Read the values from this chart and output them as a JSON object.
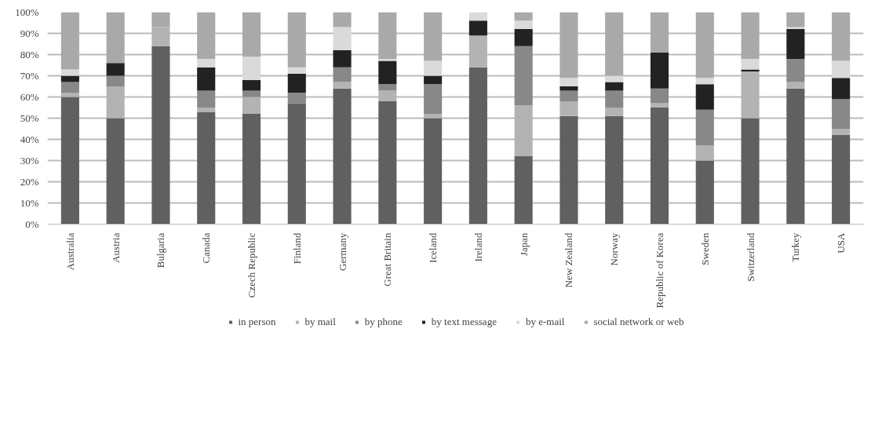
{
  "chart_data": {
    "type": "bar",
    "stacked": true,
    "categories": [
      "Australia",
      "Austria",
      "Bulgaria",
      "Canada",
      "Czech Republic",
      "Finland",
      "Germany",
      "Great Britain",
      "Iceland",
      "Ireland",
      "Japan",
      "New Zealand",
      "Norway",
      "Republic of Korea",
      "Sweden",
      "Switzerland",
      "Turkey",
      "USA"
    ],
    "series": [
      {
        "name": "in person",
        "color": "#606060",
        "values": [
          60,
          50,
          84,
          53,
          52,
          57,
          64,
          58,
          50,
          74,
          32,
          51,
          51,
          55,
          30,
          50,
          64,
          42
        ]
      },
      {
        "name": "by mail",
        "color": "#b3b3b3",
        "values": [
          2,
          15,
          9,
          2,
          8,
          0,
          3,
          5,
          2,
          15,
          24,
          7,
          4,
          2,
          7,
          22,
          3,
          3
        ]
      },
      {
        "name": "by phone",
        "color": "#888888",
        "values": [
          5,
          5,
          0,
          8,
          3,
          5,
          7,
          3,
          14,
          0,
          28,
          5,
          8,
          7,
          17,
          0,
          11,
          14
        ]
      },
      {
        "name": "by text message",
        "color": "#222222",
        "values": [
          3,
          6,
          0,
          11,
          5,
          9,
          8,
          11,
          4,
          7,
          8,
          2,
          4,
          17,
          12,
          1,
          14,
          10
        ]
      },
      {
        "name": "by e-mail",
        "color": "#dadada",
        "values": [
          3,
          0,
          0,
          4,
          11,
          3,
          11,
          1,
          7,
          4,
          4,
          4,
          3,
          0,
          3,
          5,
          1,
          8
        ]
      },
      {
        "name": "social network or web",
        "color": "#a9a9a9",
        "values": [
          27,
          24,
          7,
          22,
          21,
          26,
          7,
          22,
          23,
          0,
          4,
          31,
          30,
          19,
          31,
          22,
          7,
          23
        ]
      }
    ],
    "ylim": [
      0,
      100
    ],
    "yticks": [
      {
        "value": 0,
        "label": "0%"
      },
      {
        "value": 10,
        "label": "10%"
      },
      {
        "value": 20,
        "label": "20%"
      },
      {
        "value": 30,
        "label": "30%"
      },
      {
        "value": 40,
        "label": "40%"
      },
      {
        "value": 50,
        "label": "50%"
      },
      {
        "value": 60,
        "label": "60%"
      },
      {
        "value": 70,
        "label": "70%"
      },
      {
        "value": 80,
        "label": "80%"
      },
      {
        "value": 90,
        "label": "90%"
      },
      {
        "value": 100,
        "label": "100%"
      }
    ],
    "grid": "y",
    "legend": "bottom"
  }
}
